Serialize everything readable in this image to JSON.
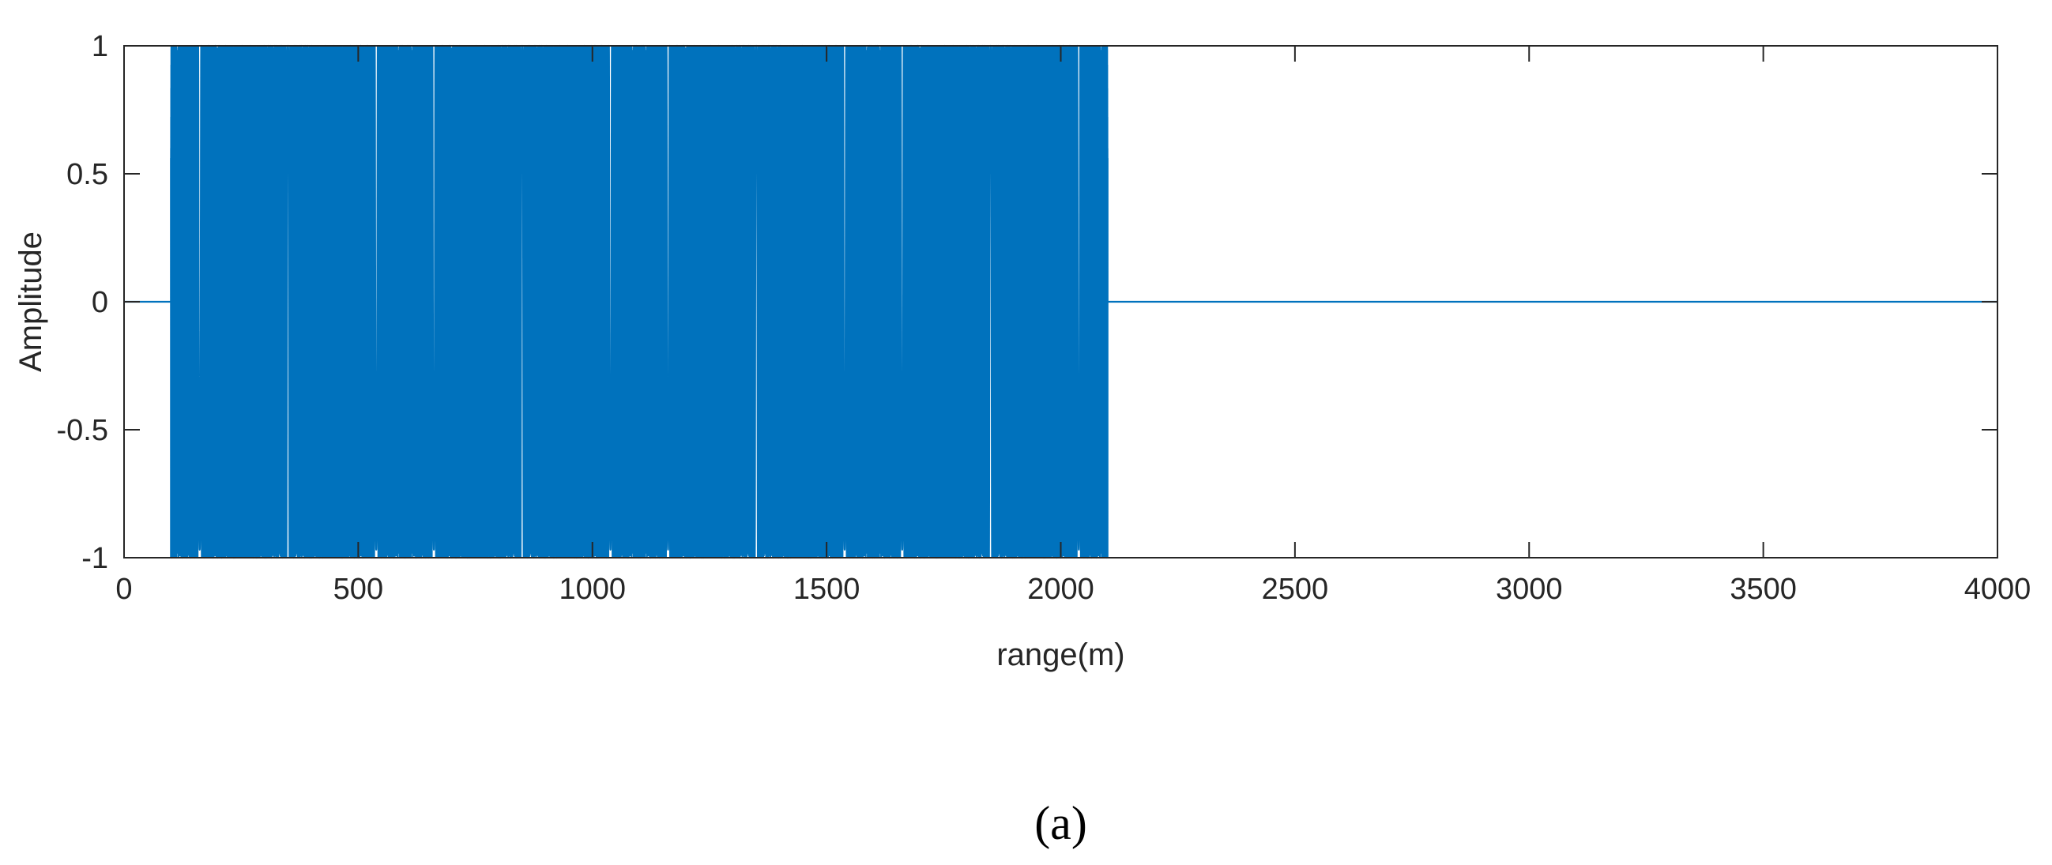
{
  "chart_data": {
    "type": "line",
    "title": "",
    "xlabel": "range(m)",
    "ylabel": "Amplitude",
    "xlim": [
      0,
      4000
    ],
    "ylim": [
      -1,
      1
    ],
    "x_ticks": [
      0,
      500,
      1000,
      1500,
      2000,
      2500,
      3000,
      3500,
      4000
    ],
    "x_tick_labels": [
      "0",
      "500",
      "1000",
      "1500",
      "2000",
      "2500",
      "3000",
      "3500",
      "4000"
    ],
    "y_ticks": [
      -1,
      -0.5,
      0,
      0.5,
      1
    ],
    "y_tick_labels": [
      "-1",
      "-0.5",
      "0",
      "0.5",
      "1"
    ],
    "grid": false,
    "box": true,
    "series": [
      {
        "color": "#0072BD",
        "description": "Repeated chirp pulses (4 up-chirps) between range 100 m and 2100 m, amplitude ±1; zero elsewhere",
        "segments": [
          {
            "start": 100,
            "end": 600,
            "chirp_center": 350
          },
          {
            "start": 600,
            "end": 1100,
            "chirp_center": 850
          },
          {
            "start": 1100,
            "end": 1600,
            "chirp_center": 1350
          },
          {
            "start": 1600,
            "end": 2100,
            "chirp_center": 1850
          }
        ],
        "zero_ranges": [
          [
            0,
            100
          ],
          [
            2100,
            4000
          ]
        ]
      }
    ]
  },
  "panel_label": "(a)",
  "colors": {
    "line": "#0072BD",
    "axes": "#262626"
  }
}
